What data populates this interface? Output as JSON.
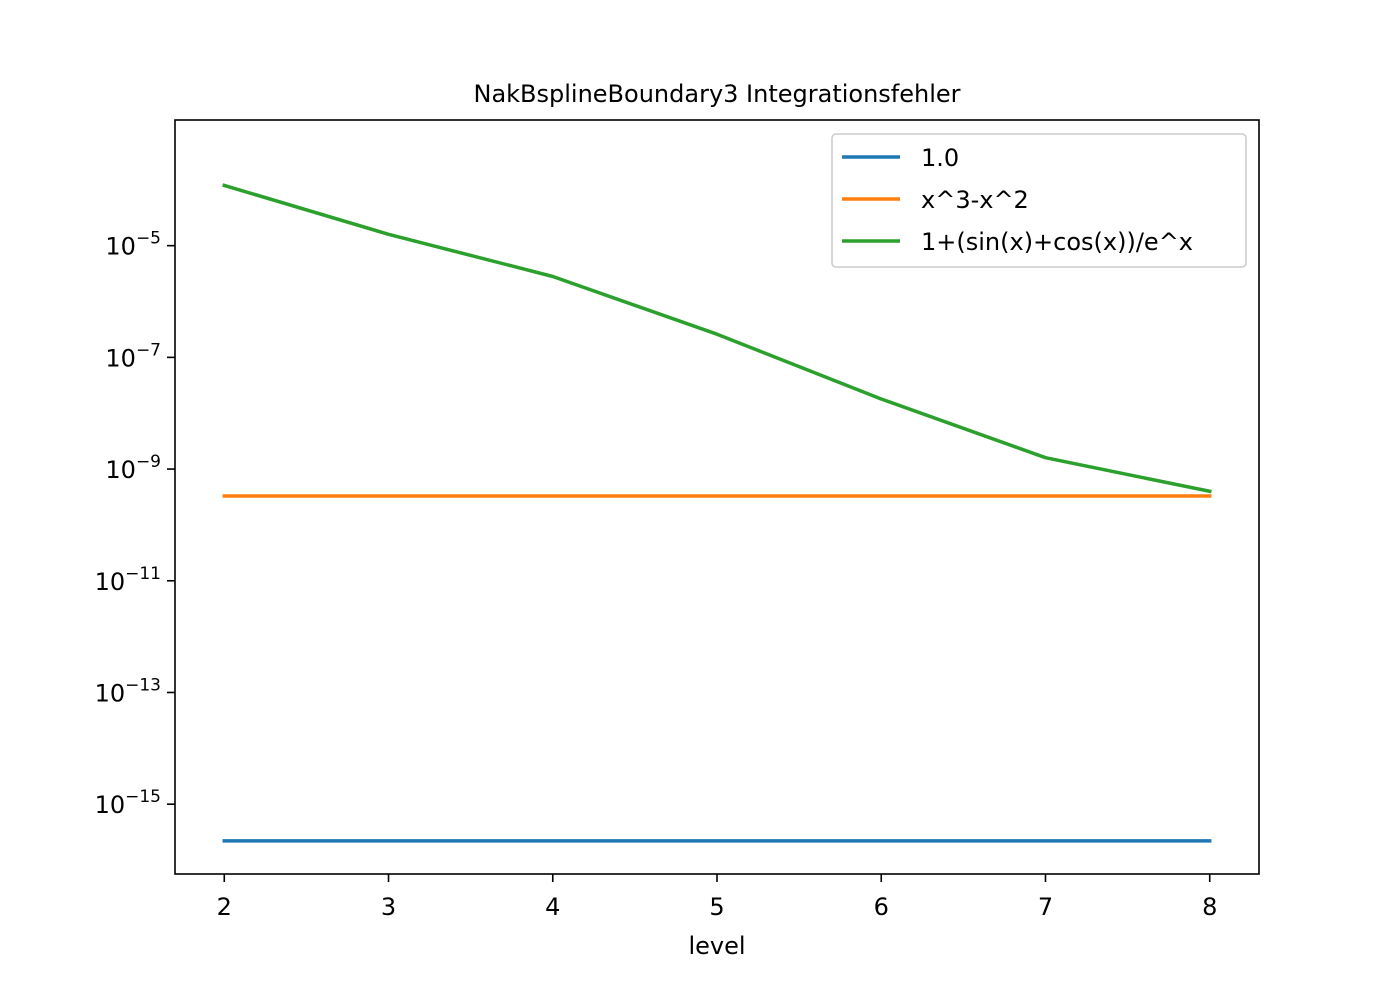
{
  "chart_data": {
    "type": "line",
    "title": "NakBsplineBoundary3 Integrationsfehler",
    "xlabel": "level",
    "ylabel": "",
    "x": [
      2,
      3,
      4,
      5,
      6,
      7,
      8
    ],
    "xlim": [
      1.7,
      8.3
    ],
    "ylim_log10": [
      -16.25,
      -2.75
    ],
    "yscale": "log",
    "xticks": [
      "2",
      "3",
      "4",
      "5",
      "6",
      "7",
      "8"
    ],
    "yticks": [
      {
        "base": "10",
        "exp": "−5",
        "value": 1e-05
      },
      {
        "base": "10",
        "exp": "−7",
        "value": 1e-07
      },
      {
        "base": "10",
        "exp": "−9",
        "value": 1e-09
      },
      {
        "base": "10",
        "exp": "−11",
        "value": 1e-11
      },
      {
        "base": "10",
        "exp": "−13",
        "value": 1e-13
      },
      {
        "base": "10",
        "exp": "−15",
        "value": 1e-15
      }
    ],
    "grid": false,
    "legend_position": "top-right",
    "series": [
      {
        "name": "1.0",
        "color": "#1f77b4",
        "values": [
          2.2e-16,
          2.2e-16,
          2.2e-16,
          2.2e-16,
          2.2e-16,
          2.2e-16,
          2.2e-16
        ]
      },
      {
        "name": "x^3-x^2",
        "color": "#ff7f0e",
        "values": [
          3.3e-10,
          3.3e-10,
          3.3e-10,
          3.3e-10,
          3.3e-10,
          3.3e-10,
          3.3e-10
        ]
      },
      {
        "name": "1+(sin(x)+cos(x))/e^x",
        "color": "#2ca02c",
        "values": [
          0.00012,
          1.6e-05,
          2.8e-06,
          2.6e-07,
          1.8e-08,
          1.6e-09,
          4e-10
        ]
      }
    ]
  }
}
